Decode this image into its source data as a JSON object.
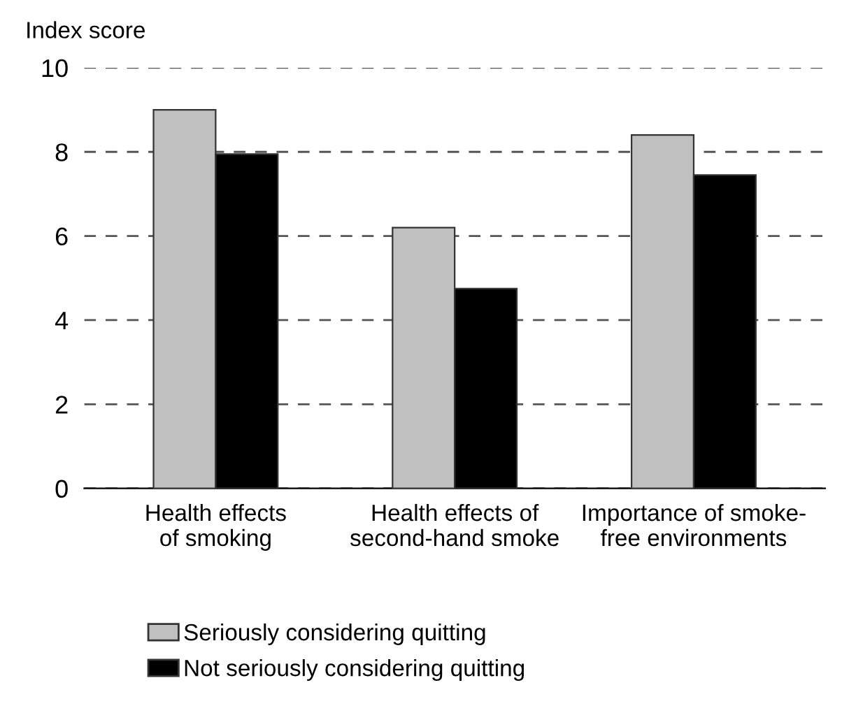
{
  "chart_data": {
    "type": "bar",
    "ylabel": "Index score",
    "categories": [
      "Health effects\nof smoking",
      "Health effects of\nsecond-hand smoke",
      "Importance of smoke-\nfree environments"
    ],
    "series": [
      {
        "name": "Seriously considering quitting",
        "color": "#c0c0c0",
        "values": [
          9.0,
          6.2,
          8.4
        ]
      },
      {
        "name": "Not seriously considering quitting",
        "color": "#000000",
        "values": [
          7.95,
          4.75,
          7.45
        ]
      }
    ],
    "ylim": [
      0,
      10
    ],
    "yticks": [
      0,
      2,
      4,
      6,
      8,
      10
    ],
    "grid": "y",
    "legend": "bottom"
  }
}
